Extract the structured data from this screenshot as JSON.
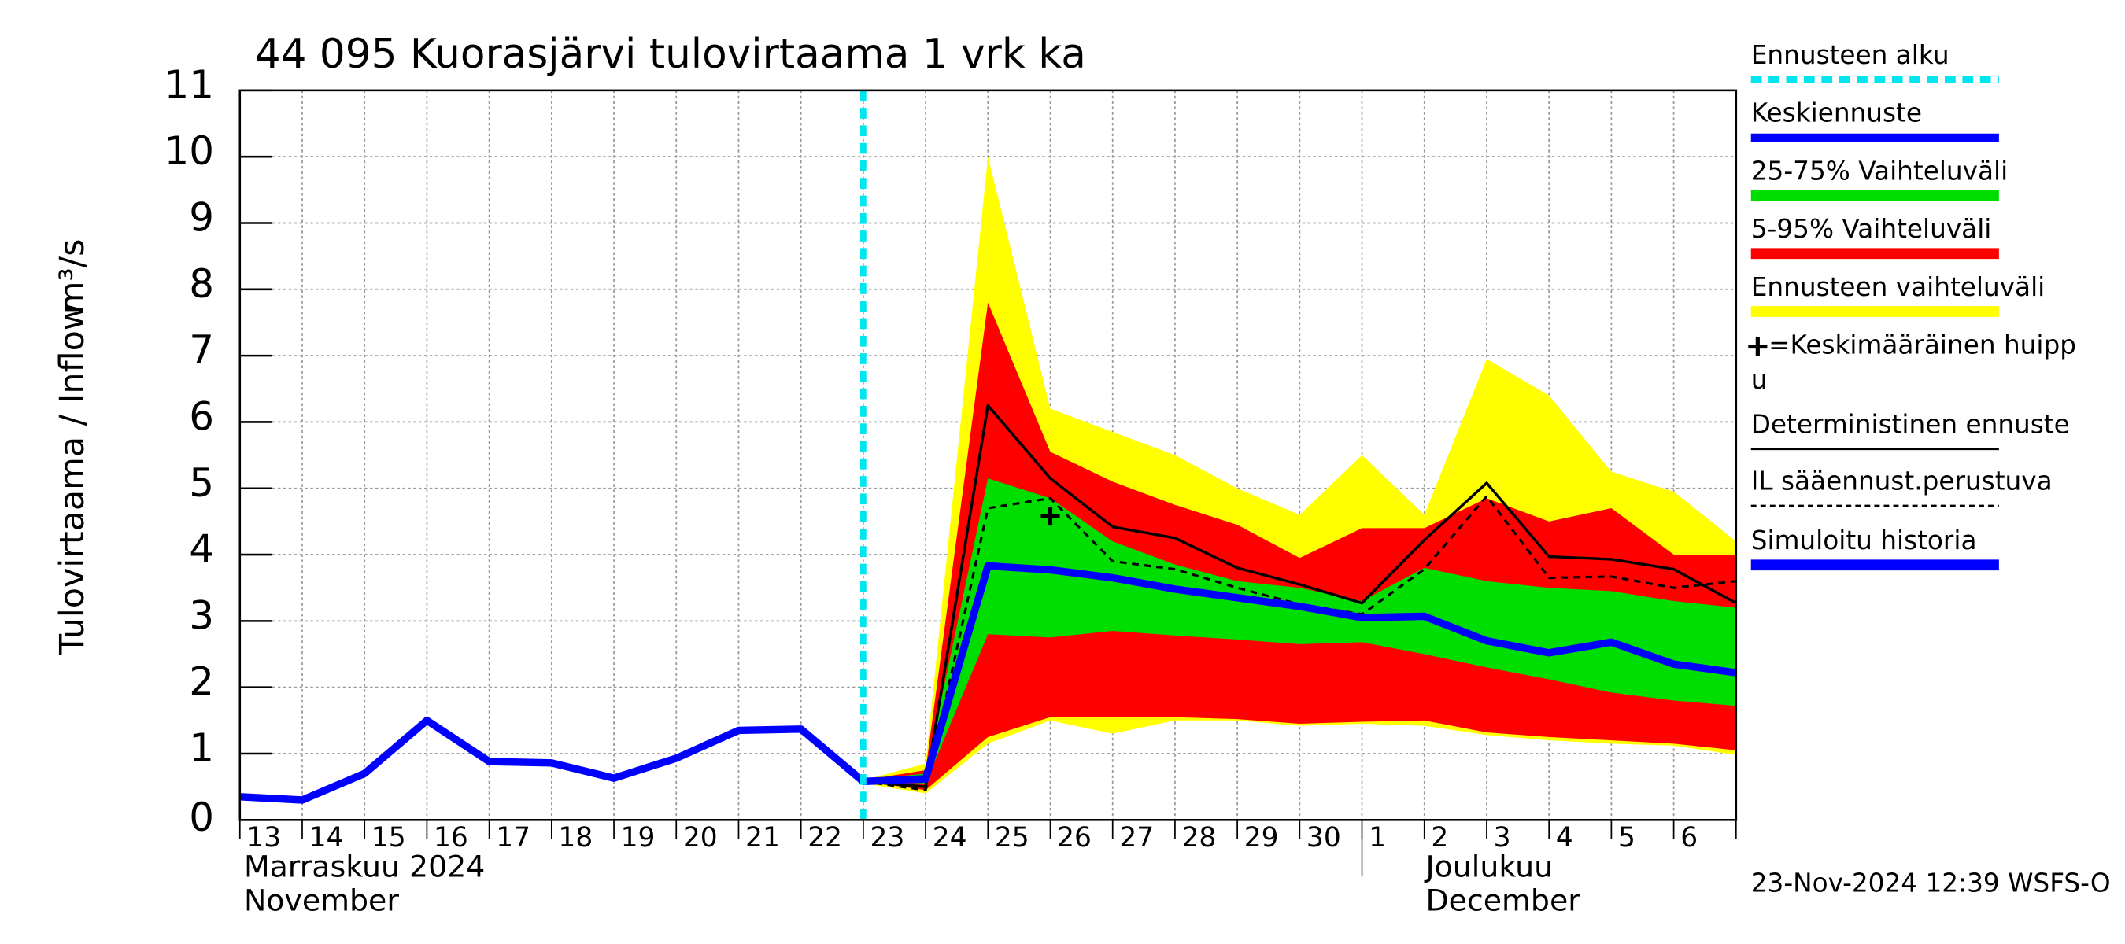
{
  "chart_data": {
    "type": "forecast",
    "title": "44 095 Kuorasjärvi tulovirtaama 1 vrk ka",
    "y_label": "Tulovirtaama / Inflow",
    "y_unit": "m³/s",
    "categories": [
      "13",
      "14",
      "15",
      "16",
      "17",
      "18",
      "19",
      "20",
      "21",
      "22",
      "23",
      "24",
      "25",
      "26",
      "27",
      "28",
      "29",
      "30",
      "1",
      "2",
      "3",
      "4",
      "5",
      "6",
      null
    ],
    "month_labels": [
      {
        "lines": [
          "Marraskuu 2024",
          "November"
        ],
        "index": 0
      },
      {
        "lines": [
          "Joulukuu",
          "December"
        ],
        "index": 18
      }
    ],
    "ylim": [
      0,
      11
    ],
    "yticks": [
      0,
      1,
      2,
      3,
      4,
      5,
      6,
      7,
      8,
      9,
      10,
      11
    ],
    "grid": true,
    "forecast_start": {
      "name": "Ennusteen alku",
      "color": "#00e5ee",
      "x": 10
    },
    "bands": [
      {
        "name": "Ennusteen vaihteluväli",
        "color": "#ffff00",
        "high": [
          null,
          null,
          null,
          null,
          null,
          null,
          null,
          null,
          null,
          null,
          0.6,
          0.85,
          10.0,
          6.2,
          5.85,
          5.5,
          5.0,
          4.6,
          5.5,
          4.6,
          6.95,
          6.4,
          5.25,
          4.95,
          4.2
        ],
        "low": [
          null,
          null,
          null,
          null,
          null,
          null,
          null,
          null,
          null,
          null,
          0.55,
          0.4,
          1.15,
          1.5,
          1.3,
          1.5,
          1.5,
          1.42,
          1.45,
          1.42,
          1.28,
          1.2,
          1.15,
          1.12,
          0.98
        ]
      },
      {
        "name": "5-95% Vaihteluväli",
        "color": "#ff0000",
        "high": [
          null,
          null,
          null,
          null,
          null,
          null,
          null,
          null,
          null,
          null,
          0.6,
          0.75,
          7.8,
          5.55,
          5.1,
          4.75,
          4.45,
          3.95,
          4.4,
          4.4,
          4.85,
          4.5,
          4.7,
          4.0,
          4.0
        ],
        "low": [
          null,
          null,
          null,
          null,
          null,
          null,
          null,
          null,
          null,
          null,
          0.58,
          0.45,
          1.25,
          1.55,
          1.55,
          1.55,
          1.52,
          1.45,
          1.48,
          1.5,
          1.32,
          1.25,
          1.2,
          1.15,
          1.05
        ]
      },
      {
        "name": "25-75% Vaihteluväli",
        "color": "#00dd00",
        "high": [
          null,
          null,
          null,
          null,
          null,
          null,
          null,
          null,
          null,
          null,
          0.6,
          0.7,
          5.15,
          4.85,
          4.2,
          3.85,
          3.6,
          3.5,
          3.3,
          3.8,
          3.6,
          3.5,
          3.45,
          3.3,
          3.2
        ],
        "low": [
          null,
          null,
          null,
          null,
          null,
          null,
          null,
          null,
          null,
          null,
          0.58,
          0.55,
          2.8,
          2.75,
          2.85,
          2.78,
          2.72,
          2.65,
          2.68,
          2.5,
          2.3,
          2.12,
          1.92,
          1.8,
          1.72
        ]
      }
    ],
    "series": [
      {
        "name": "Keskiennuste",
        "color": "#0000ff",
        "style": "thick",
        "values": [
          null,
          null,
          null,
          null,
          null,
          null,
          null,
          null,
          null,
          null,
          0.58,
          0.62,
          3.83,
          3.77,
          3.65,
          3.48,
          3.35,
          3.22,
          3.05,
          3.07,
          2.7,
          2.52,
          2.68,
          2.35,
          2.22
        ]
      },
      {
        "name": "Deterministinen ennuste",
        "color": "#000000",
        "style": "thin",
        "values": [
          null,
          null,
          null,
          null,
          null,
          null,
          null,
          null,
          null,
          null,
          0.58,
          0.5,
          6.25,
          5.15,
          4.42,
          4.25,
          3.8,
          3.55,
          3.27,
          4.22,
          5.08,
          3.97,
          3.93,
          3.78,
          3.27
        ]
      },
      {
        "name": "IL sääennust.perustuva",
        "color": "#000000",
        "style": "dashed",
        "values": [
          null,
          null,
          null,
          null,
          null,
          null,
          null,
          null,
          null,
          null,
          0.58,
          0.45,
          4.7,
          4.85,
          3.9,
          3.78,
          3.5,
          3.25,
          3.1,
          3.78,
          4.88,
          3.65,
          3.67,
          3.5,
          3.6
        ]
      },
      {
        "name": "Simuloitu historia",
        "color": "#0000ff",
        "style": "thick",
        "values": [
          0.35,
          0.3,
          0.7,
          1.5,
          0.88,
          0.86,
          0.63,
          0.93,
          1.35,
          1.37,
          0.58,
          null,
          null,
          null,
          null,
          null,
          null,
          null,
          null,
          null,
          null,
          null,
          null,
          null,
          null
        ]
      }
    ],
    "peak": {
      "lines": [
        "=Keskimääräinen huipp",
        "u"
      ],
      "x": 13,
      "y": 4.58,
      "color": "#000000"
    },
    "footer": "23-Nov-2024 12:39 WSFS-O"
  }
}
